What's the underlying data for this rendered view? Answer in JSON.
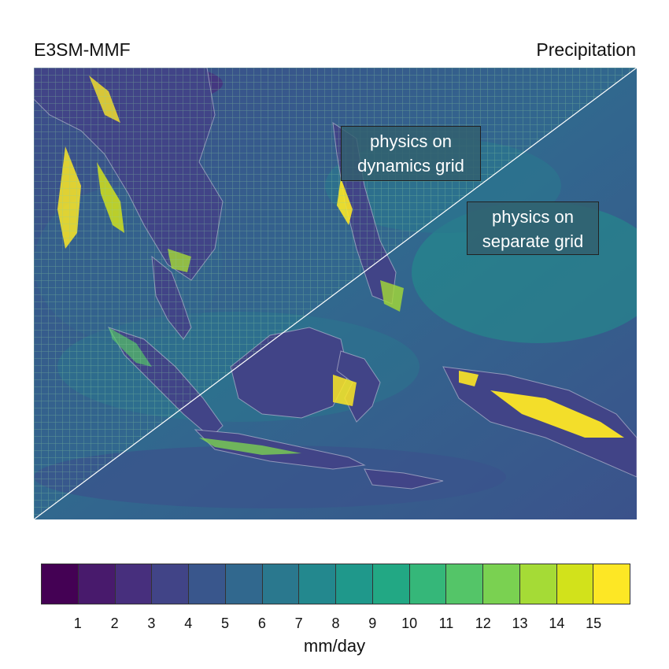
{
  "header": {
    "model": "E3SM-MMF",
    "variable": "Precipitation"
  },
  "map": {
    "labels": {
      "dynamics": [
        "physics on",
        "dynamics grid"
      ],
      "separate": [
        "physics on",
        "separate grid"
      ]
    },
    "background_color": "#3b528b",
    "grid_line_color": "#7fbf9f",
    "coastline_color": "#c8c8d8",
    "highlight_color": "#f1e51d"
  },
  "colorbar": {
    "colors": [
      "#440154",
      "#481a6c",
      "#472f7d",
      "#414487",
      "#39568c",
      "#31688e",
      "#2a788e",
      "#23888e",
      "#1f988b",
      "#22a884",
      "#35b779",
      "#54c568",
      "#7ad151",
      "#a5db36",
      "#d2e21b",
      "#fde725"
    ],
    "ticks": [
      "1",
      "2",
      "3",
      "4",
      "5",
      "6",
      "7",
      "8",
      "9",
      "10",
      "11",
      "12",
      "13",
      "14",
      "15"
    ],
    "unit": "mm/day"
  }
}
